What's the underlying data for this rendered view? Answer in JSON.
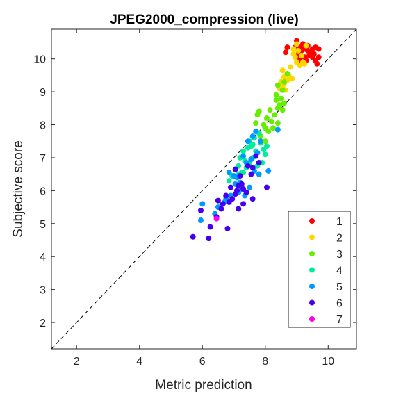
{
  "chart_data": {
    "type": "scatter",
    "title": "JPEG2000_compression (live)",
    "xlabel": "Metric prediction",
    "ylabel": "Subjective score",
    "xlim": [
      1.2,
      10.9
    ],
    "ylim": [
      1.2,
      10.9
    ],
    "xticks": [
      2,
      4,
      6,
      8,
      10
    ],
    "yticks": [
      2,
      3,
      4,
      5,
      6,
      7,
      8,
      9,
      10
    ],
    "grid": false,
    "box": true,
    "legend_position": "bottom-right",
    "reference_line": "diagonal dashed y = x",
    "series": [
      {
        "name": "1",
        "color": "#ff0000",
        "points": [
          [
            9.0,
            10.55
          ],
          [
            9.2,
            10.45
          ],
          [
            9.1,
            10.35
          ],
          [
            9.35,
            10.25
          ],
          [
            9.5,
            10.3
          ],
          [
            9.6,
            10.35
          ],
          [
            9.7,
            10.3
          ],
          [
            9.55,
            10.15
          ],
          [
            9.4,
            10.1
          ],
          [
            9.25,
            10.05
          ],
          [
            9.1,
            10.1
          ],
          [
            9.0,
            10.0
          ],
          [
            9.3,
            9.95
          ],
          [
            9.6,
            9.95
          ],
          [
            9.7,
            10.05
          ],
          [
            9.45,
            10.2
          ],
          [
            9.15,
            10.25
          ],
          [
            9.05,
            10.15
          ],
          [
            8.95,
            10.35
          ],
          [
            9.5,
            10.05
          ],
          [
            9.65,
            9.85
          ],
          [
            9.35,
            10.4
          ],
          [
            9.25,
            10.3
          ],
          [
            8.65,
            10.2
          ],
          [
            8.7,
            10.35
          ],
          [
            9.1,
            9.95
          ]
        ]
      },
      {
        "name": "2",
        "color": "#ffd700",
        "points": [
          [
            8.9,
            10.3
          ],
          [
            9.0,
            10.45
          ],
          [
            8.95,
            10.05
          ],
          [
            9.1,
            9.8
          ],
          [
            9.2,
            9.9
          ],
          [
            8.8,
            9.75
          ],
          [
            8.55,
            9.65
          ],
          [
            8.6,
            9.45
          ],
          [
            8.75,
            9.5
          ],
          [
            8.7,
            9.35
          ],
          [
            8.5,
            9.3
          ],
          [
            8.55,
            9.15
          ],
          [
            8.45,
            9.1
          ],
          [
            8.85,
            9.4
          ],
          [
            9.0,
            9.9
          ],
          [
            9.15,
            10.1
          ],
          [
            9.3,
            10.4
          ],
          [
            8.9,
            10.15
          ],
          [
            9.05,
            10.25
          ],
          [
            9.25,
            9.85
          ],
          [
            8.65,
            9.05
          ],
          [
            8.6,
            9.25
          ]
        ]
      },
      {
        "name": "3",
        "color": "#66ee00",
        "points": [
          [
            8.4,
            9.2
          ],
          [
            8.35,
            8.9
          ],
          [
            8.5,
            8.8
          ],
          [
            8.55,
            9.05
          ],
          [
            8.6,
            8.65
          ],
          [
            8.45,
            8.6
          ],
          [
            8.55,
            8.45
          ],
          [
            8.4,
            8.5
          ],
          [
            8.3,
            8.3
          ],
          [
            8.2,
            8.1
          ],
          [
            8.25,
            7.9
          ],
          [
            8.1,
            7.8
          ],
          [
            8.0,
            7.9
          ],
          [
            7.95,
            8.0
          ],
          [
            8.05,
            8.2
          ],
          [
            8.15,
            8.45
          ],
          [
            7.8,
            8.4
          ],
          [
            7.75,
            8.3
          ],
          [
            7.7,
            8.05
          ],
          [
            7.85,
            7.65
          ],
          [
            8.6,
            9.3
          ],
          [
            8.7,
            9.55
          ],
          [
            8.35,
            8.75
          ],
          [
            8.0,
            7.5
          ],
          [
            8.4,
            8.05
          ]
        ]
      },
      {
        "name": "4",
        "color": "#00ee99",
        "points": [
          [
            7.8,
            7.75
          ],
          [
            7.65,
            7.6
          ],
          [
            7.5,
            7.5
          ],
          [
            7.55,
            7.35
          ],
          [
            7.45,
            7.3
          ],
          [
            7.3,
            7.2
          ],
          [
            7.2,
            7.0
          ],
          [
            7.35,
            6.9
          ],
          [
            7.15,
            6.75
          ],
          [
            7.05,
            6.65
          ],
          [
            7.25,
            6.55
          ],
          [
            7.4,
            6.7
          ],
          [
            7.6,
            7.0
          ],
          [
            7.7,
            7.2
          ],
          [
            7.85,
            7.45
          ],
          [
            7.95,
            7.25
          ],
          [
            8.0,
            7.1
          ],
          [
            7.9,
            6.85
          ],
          [
            7.75,
            6.75
          ],
          [
            8.05,
            7.35
          ],
          [
            7.15,
            6.5
          ],
          [
            7.5,
            6.85
          ],
          [
            7.3,
            6.55
          ],
          [
            6.95,
            6.45
          ],
          [
            6.85,
            6.3
          ],
          [
            7.6,
            7.4
          ]
        ]
      },
      {
        "name": "5",
        "color": "#0099ff",
        "points": [
          [
            7.7,
            7.8
          ],
          [
            7.6,
            7.65
          ],
          [
            7.45,
            7.5
          ],
          [
            7.3,
            7.05
          ],
          [
            7.4,
            6.85
          ],
          [
            7.55,
            6.95
          ],
          [
            8.1,
            6.6
          ],
          [
            7.8,
            6.5
          ],
          [
            7.65,
            6.6
          ],
          [
            7.2,
            6.25
          ],
          [
            7.1,
            6.4
          ],
          [
            7.0,
            6.45
          ],
          [
            6.85,
            6.55
          ],
          [
            7.25,
            6.05
          ],
          [
            7.5,
            6.1
          ],
          [
            7.35,
            5.85
          ],
          [
            7.15,
            5.95
          ],
          [
            6.9,
            5.85
          ],
          [
            6.75,
            5.75
          ],
          [
            6.7,
            5.65
          ],
          [
            6.5,
            5.5
          ],
          [
            6.4,
            5.3
          ],
          [
            5.95,
            5.1
          ],
          [
            6.0,
            5.6
          ],
          [
            7.75,
            7.15
          ],
          [
            7.85,
            7.5
          ],
          [
            8.4,
            7.85
          ],
          [
            7.05,
            6.2
          ]
        ]
      },
      {
        "name": "6",
        "color": "#4400ee",
        "points": [
          [
            7.7,
            7.05
          ],
          [
            7.8,
            6.85
          ],
          [
            7.6,
            6.7
          ],
          [
            7.45,
            6.75
          ],
          [
            7.05,
            6.65
          ],
          [
            7.2,
            6.45
          ],
          [
            7.15,
            6.15
          ],
          [
            7.25,
            6.2
          ],
          [
            7.1,
            6.0
          ],
          [
            7.3,
            6.05
          ],
          [
            7.05,
            5.9
          ],
          [
            6.95,
            5.75
          ],
          [
            6.9,
            6.1
          ],
          [
            6.75,
            5.85
          ],
          [
            6.85,
            5.65
          ],
          [
            6.65,
            5.6
          ],
          [
            6.5,
            5.7
          ],
          [
            6.6,
            5.45
          ],
          [
            6.45,
            5.2
          ],
          [
            5.95,
            5.4
          ],
          [
            6.25,
            4.9
          ],
          [
            6.2,
            4.55
          ],
          [
            5.7,
            4.6
          ],
          [
            6.8,
            4.85
          ],
          [
            7.4,
            5.95
          ],
          [
            7.6,
            5.75
          ],
          [
            7.3,
            5.6
          ],
          [
            7.15,
            5.45
          ],
          [
            8.05,
            6.1
          ],
          [
            7.55,
            6.5
          ]
        ]
      },
      {
        "name": "7",
        "color": "#ff00ee",
        "points": [
          [
            6.45,
            5.15
          ]
        ]
      }
    ]
  }
}
